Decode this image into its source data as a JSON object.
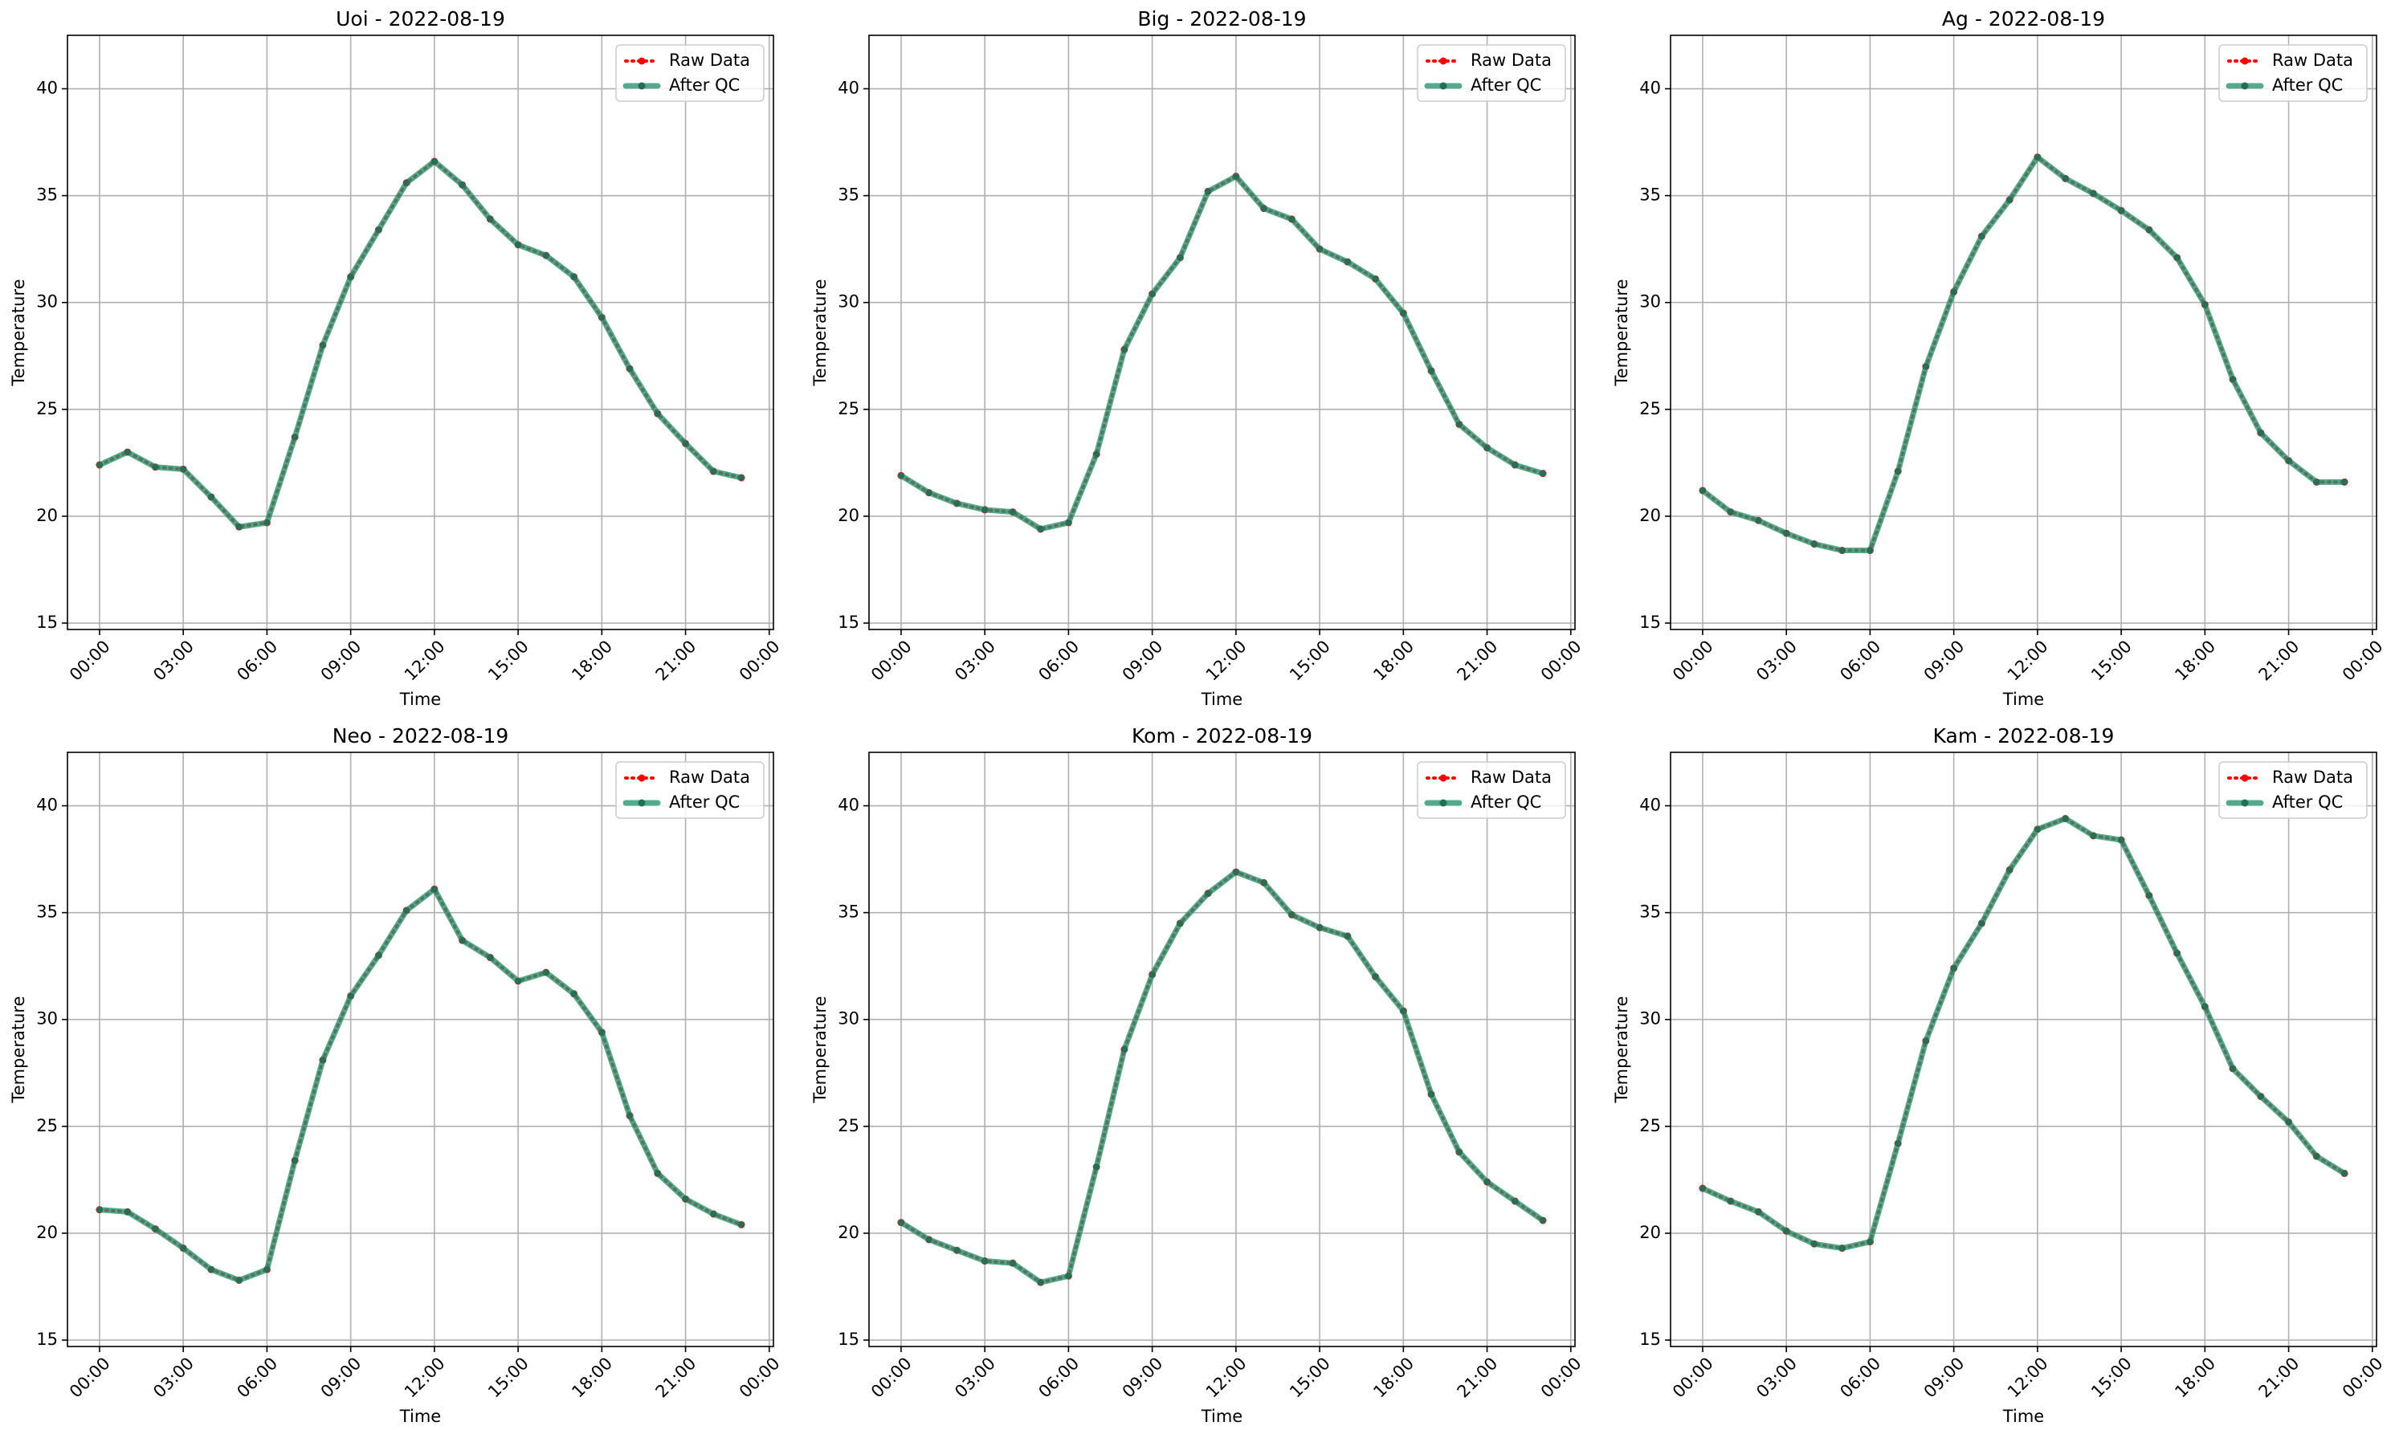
{
  "chart_data": [
    {
      "type": "line",
      "title": "Uoi - 2022-08-19",
      "xlabel": "Time",
      "ylabel": "Temperature",
      "x": [
        0,
        1,
        2,
        3,
        4,
        5,
        6,
        7,
        8,
        9,
        10,
        11,
        12,
        13,
        14,
        15,
        16,
        17,
        18,
        19,
        20,
        21,
        22,
        23
      ],
      "series": [
        {
          "name": "Raw Data",
          "color": "#ff0000",
          "linestyle": "dotted",
          "values": [
            22.4,
            23.0,
            22.3,
            22.2,
            20.9,
            19.5,
            19.7,
            23.7,
            28.0,
            31.2,
            33.4,
            35.6,
            36.6,
            35.5,
            33.9,
            32.7,
            32.2,
            31.2,
            29.3,
            26.9,
            24.8,
            23.4,
            22.1,
            21.8
          ]
        },
        {
          "name": "After QC",
          "color": "#2a9472",
          "linestyle": "solid",
          "values": [
            22.4,
            23.0,
            22.3,
            22.2,
            20.9,
            19.5,
            19.7,
            23.7,
            28.0,
            31.2,
            33.4,
            35.6,
            36.6,
            35.5,
            33.9,
            32.7,
            32.2,
            31.2,
            29.3,
            26.9,
            24.8,
            23.4,
            22.1,
            21.8
          ]
        }
      ],
      "xlim": [
        -1.15,
        24.15
      ],
      "ylim": [
        14.7,
        42.5
      ],
      "xticks": [
        {
          "value": 0,
          "label": "00:00"
        },
        {
          "value": 3,
          "label": "03:00"
        },
        {
          "value": 6,
          "label": "06:00"
        },
        {
          "value": 9,
          "label": "09:00"
        },
        {
          "value": 12,
          "label": "12:00"
        },
        {
          "value": 15,
          "label": "15:00"
        },
        {
          "value": 18,
          "label": "18:00"
        },
        {
          "value": 21,
          "label": "21:00"
        },
        {
          "value": 24,
          "label": "00:00"
        }
      ],
      "yticks": [
        15,
        20,
        25,
        30,
        35,
        40
      ],
      "grid": true,
      "legend": "upper right"
    },
    {
      "type": "line",
      "title": "Big - 2022-08-19",
      "xlabel": "Time",
      "ylabel": "Temperature",
      "x": [
        0,
        1,
        2,
        3,
        4,
        5,
        6,
        7,
        8,
        9,
        10,
        11,
        12,
        13,
        14,
        15,
        16,
        17,
        18,
        19,
        20,
        21,
        22,
        23
      ],
      "series": [
        {
          "name": "Raw Data",
          "color": "#ff0000",
          "linestyle": "dotted",
          "values": [
            21.9,
            21.1,
            20.6,
            20.3,
            20.2,
            19.4,
            19.7,
            22.9,
            27.8,
            30.4,
            32.1,
            35.2,
            35.9,
            34.4,
            33.9,
            32.5,
            31.9,
            31.1,
            29.5,
            26.8,
            24.3,
            23.2,
            22.4,
            22.0
          ]
        },
        {
          "name": "After QC",
          "color": "#2a9472",
          "linestyle": "solid",
          "values": [
            21.9,
            21.1,
            20.6,
            20.3,
            20.2,
            19.4,
            19.7,
            22.9,
            27.8,
            30.4,
            32.1,
            35.2,
            35.9,
            34.4,
            33.9,
            32.5,
            31.9,
            31.1,
            29.5,
            26.8,
            24.3,
            23.2,
            22.4,
            22.0
          ]
        }
      ],
      "xlim": [
        -1.15,
        24.15
      ],
      "ylim": [
        14.7,
        42.5
      ],
      "xticks": [
        {
          "value": 0,
          "label": "00:00"
        },
        {
          "value": 3,
          "label": "03:00"
        },
        {
          "value": 6,
          "label": "06:00"
        },
        {
          "value": 9,
          "label": "09:00"
        },
        {
          "value": 12,
          "label": "12:00"
        },
        {
          "value": 15,
          "label": "15:00"
        },
        {
          "value": 18,
          "label": "18:00"
        },
        {
          "value": 21,
          "label": "21:00"
        },
        {
          "value": 24,
          "label": "00:00"
        }
      ],
      "yticks": [
        15,
        20,
        25,
        30,
        35,
        40
      ],
      "grid": true,
      "legend": "upper right"
    },
    {
      "type": "line",
      "title": "Ag - 2022-08-19",
      "xlabel": "Time",
      "ylabel": "Temperature",
      "x": [
        0,
        1,
        2,
        3,
        4,
        5,
        6,
        7,
        8,
        9,
        10,
        11,
        12,
        13,
        14,
        15,
        16,
        17,
        18,
        19,
        20,
        21,
        22,
        23
      ],
      "series": [
        {
          "name": "Raw Data",
          "color": "#ff0000",
          "linestyle": "dotted",
          "values": [
            21.2,
            20.2,
            19.8,
            19.2,
            18.7,
            18.4,
            18.4,
            22.1,
            27.0,
            30.5,
            33.1,
            34.8,
            36.8,
            35.8,
            35.1,
            34.3,
            33.4,
            32.1,
            29.9,
            26.4,
            23.9,
            22.6,
            21.6,
            21.6
          ]
        },
        {
          "name": "After QC",
          "color": "#2a9472",
          "linestyle": "solid",
          "values": [
            21.2,
            20.2,
            19.8,
            19.2,
            18.7,
            18.4,
            18.4,
            22.1,
            27.0,
            30.5,
            33.1,
            34.8,
            36.8,
            35.8,
            35.1,
            34.3,
            33.4,
            32.1,
            29.9,
            26.4,
            23.9,
            22.6,
            21.6,
            21.6
          ]
        }
      ],
      "xlim": [
        -1.15,
        24.15
      ],
      "ylim": [
        14.7,
        42.5
      ],
      "xticks": [
        {
          "value": 0,
          "label": "00:00"
        },
        {
          "value": 3,
          "label": "03:00"
        },
        {
          "value": 6,
          "label": "06:00"
        },
        {
          "value": 9,
          "label": "09:00"
        },
        {
          "value": 12,
          "label": "12:00"
        },
        {
          "value": 15,
          "label": "15:00"
        },
        {
          "value": 18,
          "label": "18:00"
        },
        {
          "value": 21,
          "label": "21:00"
        },
        {
          "value": 24,
          "label": "00:00"
        }
      ],
      "yticks": [
        15,
        20,
        25,
        30,
        35,
        40
      ],
      "grid": true,
      "legend": "upper right"
    },
    {
      "type": "line",
      "title": "Neo - 2022-08-19",
      "xlabel": "Time",
      "ylabel": "Temperature",
      "x": [
        0,
        1,
        2,
        3,
        4,
        5,
        6,
        7,
        8,
        9,
        10,
        11,
        12,
        13,
        14,
        15,
        16,
        17,
        18,
        19,
        20,
        21,
        22,
        23
      ],
      "series": [
        {
          "name": "Raw Data",
          "color": "#ff0000",
          "linestyle": "dotted",
          "values": [
            21.1,
            21.0,
            20.2,
            19.3,
            18.3,
            17.8,
            18.3,
            23.4,
            28.1,
            31.1,
            33.0,
            35.1,
            36.1,
            33.7,
            32.9,
            31.8,
            32.2,
            31.2,
            29.4,
            25.5,
            22.8,
            21.6,
            20.9,
            20.4
          ]
        },
        {
          "name": "After QC",
          "color": "#2a9472",
          "linestyle": "solid",
          "values": [
            21.1,
            21.0,
            20.2,
            19.3,
            18.3,
            17.8,
            18.3,
            23.4,
            28.1,
            31.1,
            33.0,
            35.1,
            36.1,
            33.7,
            32.9,
            31.8,
            32.2,
            31.2,
            29.4,
            25.5,
            22.8,
            21.6,
            20.9,
            20.4
          ]
        }
      ],
      "xlim": [
        -1.15,
        24.15
      ],
      "ylim": [
        14.7,
        42.5
      ],
      "xticks": [
        {
          "value": 0,
          "label": "00:00"
        },
        {
          "value": 3,
          "label": "03:00"
        },
        {
          "value": 6,
          "label": "06:00"
        },
        {
          "value": 9,
          "label": "09:00"
        },
        {
          "value": 12,
          "label": "12:00"
        },
        {
          "value": 15,
          "label": "15:00"
        },
        {
          "value": 18,
          "label": "18:00"
        },
        {
          "value": 21,
          "label": "21:00"
        },
        {
          "value": 24,
          "label": "00:00"
        }
      ],
      "yticks": [
        15,
        20,
        25,
        30,
        35,
        40
      ],
      "grid": true,
      "legend": "upper right"
    },
    {
      "type": "line",
      "title": "Kom - 2022-08-19",
      "xlabel": "Time",
      "ylabel": "Temperature",
      "x": [
        0,
        1,
        2,
        3,
        4,
        5,
        6,
        7,
        8,
        9,
        10,
        11,
        12,
        13,
        14,
        15,
        16,
        17,
        18,
        19,
        20,
        21,
        22,
        23
      ],
      "series": [
        {
          "name": "Raw Data",
          "color": "#ff0000",
          "linestyle": "dotted",
          "values": [
            20.5,
            19.7,
            19.2,
            18.7,
            18.6,
            17.7,
            18.0,
            23.1,
            28.6,
            32.1,
            34.5,
            35.9,
            36.9,
            36.4,
            34.9,
            34.3,
            33.9,
            32.0,
            30.4,
            26.5,
            23.8,
            22.4,
            21.5,
            20.6
          ]
        },
        {
          "name": "After QC",
          "color": "#2a9472",
          "linestyle": "solid",
          "values": [
            20.5,
            19.7,
            19.2,
            18.7,
            18.6,
            17.7,
            18.0,
            23.1,
            28.6,
            32.1,
            34.5,
            35.9,
            36.9,
            36.4,
            34.9,
            34.3,
            33.9,
            32.0,
            30.4,
            26.5,
            23.8,
            22.4,
            21.5,
            20.6
          ]
        }
      ],
      "xlim": [
        -1.15,
        24.15
      ],
      "ylim": [
        14.7,
        42.5
      ],
      "xticks": [
        {
          "value": 0,
          "label": "00:00"
        },
        {
          "value": 3,
          "label": "03:00"
        },
        {
          "value": 6,
          "label": "06:00"
        },
        {
          "value": 9,
          "label": "09:00"
        },
        {
          "value": 12,
          "label": "12:00"
        },
        {
          "value": 15,
          "label": "15:00"
        },
        {
          "value": 18,
          "label": "18:00"
        },
        {
          "value": 21,
          "label": "21:00"
        },
        {
          "value": 24,
          "label": "00:00"
        }
      ],
      "yticks": [
        15,
        20,
        25,
        30,
        35,
        40
      ],
      "grid": true,
      "legend": "upper right"
    },
    {
      "type": "line",
      "title": "Kam - 2022-08-19",
      "xlabel": "Time",
      "ylabel": "Temperature",
      "x": [
        0,
        1,
        2,
        3,
        4,
        5,
        6,
        7,
        8,
        9,
        10,
        11,
        12,
        13,
        14,
        15,
        16,
        17,
        18,
        19,
        20,
        21,
        22,
        23
      ],
      "series": [
        {
          "name": "Raw Data",
          "color": "#ff0000",
          "linestyle": "dotted",
          "values": [
            22.1,
            21.5,
            21.0,
            20.1,
            19.5,
            19.3,
            19.6,
            24.2,
            29.0,
            32.4,
            34.5,
            37.0,
            38.9,
            39.4,
            38.6,
            38.4,
            35.8,
            33.1,
            30.6,
            27.7,
            26.4,
            25.2,
            23.6,
            22.8
          ]
        },
        {
          "name": "After QC",
          "color": "#2a9472",
          "linestyle": "solid",
          "values": [
            22.1,
            21.5,
            21.0,
            20.1,
            19.5,
            19.3,
            19.6,
            24.2,
            29.0,
            32.4,
            34.5,
            37.0,
            38.9,
            39.4,
            38.6,
            38.4,
            35.8,
            33.1,
            30.6,
            27.7,
            26.4,
            25.2,
            23.6,
            22.8
          ]
        }
      ],
      "xlim": [
        -1.15,
        24.15
      ],
      "ylim": [
        14.7,
        42.5
      ],
      "xticks": [
        {
          "value": 0,
          "label": "00:00"
        },
        {
          "value": 3,
          "label": "03:00"
        },
        {
          "value": 6,
          "label": "06:00"
        },
        {
          "value": 9,
          "label": "09:00"
        },
        {
          "value": 12,
          "label": "12:00"
        },
        {
          "value": 15,
          "label": "15:00"
        },
        {
          "value": 18,
          "label": "18:00"
        },
        {
          "value": 21,
          "label": "21:00"
        },
        {
          "value": 24,
          "label": "00:00"
        }
      ],
      "yticks": [
        15,
        20,
        25,
        30,
        35,
        40
      ],
      "grid": true,
      "legend": "upper right"
    }
  ]
}
